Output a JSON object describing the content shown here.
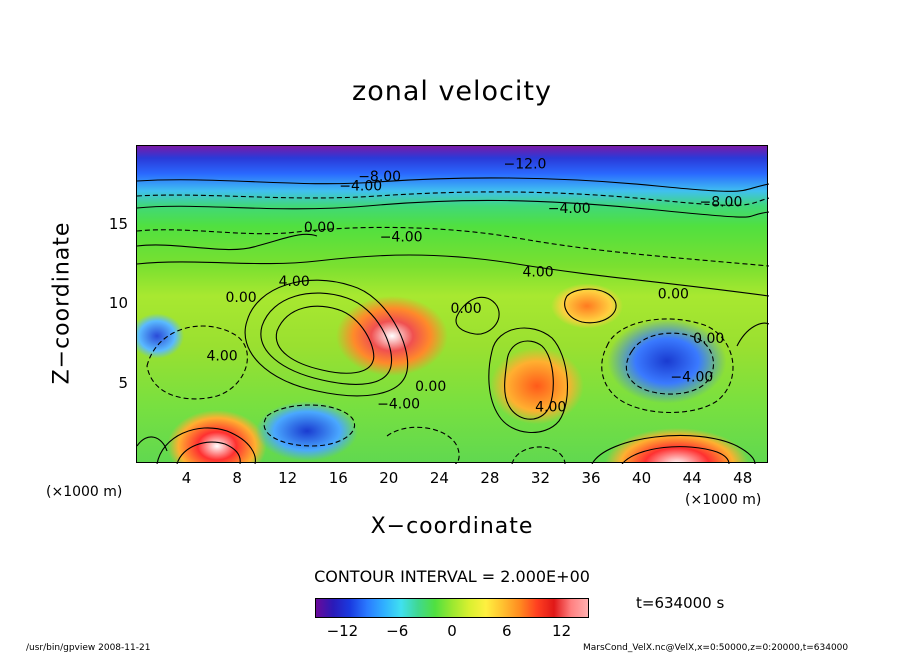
{
  "chart_data": {
    "type": "heatmap",
    "title": "zonal velocity",
    "xlabel": "X−coordinate",
    "ylabel": "Z−coordinate",
    "x_unit_left": "(×1000 m)",
    "x_unit_right": "(×1000 m)",
    "xlim": [
      0,
      50
    ],
    "ylim": [
      0,
      20
    ],
    "x_ticks": [
      "4",
      "8",
      "12",
      "16",
      "20",
      "24",
      "28",
      "32",
      "36",
      "40",
      "44",
      "48"
    ],
    "x_tick_values": [
      4,
      8,
      12,
      16,
      20,
      24,
      28,
      32,
      36,
      40,
      44,
      48
    ],
    "y_ticks": [
      "5",
      "10",
      "15"
    ],
    "y_tick_values": [
      5,
      10,
      15
    ],
    "contour_interval": "CONTOUR INTERVAL = 2.000E+00",
    "contour_labels": [
      {
        "text": "−12.0",
        "x": 29,
        "y": 18.6
      },
      {
        "text": "−8.00",
        "x": 17.5,
        "y": 17.8
      },
      {
        "text": "−4.00",
        "x": 16.0,
        "y": 17.2
      },
      {
        "text": "−8.00",
        "x": 44.5,
        "y": 16.2
      },
      {
        "text": "−4.00",
        "x": 32.5,
        "y": 15.8
      },
      {
        "text": "0.00",
        "x": 13.2,
        "y": 14.6
      },
      {
        "text": "−4.00",
        "x": 19.2,
        "y": 14.0
      },
      {
        "text": "4.00",
        "x": 30.5,
        "y": 11.8
      },
      {
        "text": "4.00",
        "x": 11.2,
        "y": 11.2
      },
      {
        "text": "0.00",
        "x": 7.0,
        "y": 10.2
      },
      {
        "text": "0.00",
        "x": 41.2,
        "y": 10.4
      },
      {
        "text": "0.00",
        "x": 24.8,
        "y": 9.5
      },
      {
        "text": "0.00",
        "x": 44.0,
        "y": 7.6
      },
      {
        "text": "4.00",
        "x": 5.5,
        "y": 6.5
      },
      {
        "text": "0.00",
        "x": 22.0,
        "y": 4.6
      },
      {
        "text": "−4.00",
        "x": 19.0,
        "y": 3.5
      },
      {
        "text": "4.00",
        "x": 31.5,
        "y": 3.3
      },
      {
        "text": "−4.00",
        "x": 42.2,
        "y": 5.2
      }
    ],
    "colorbar": {
      "min": -15,
      "max": 15,
      "ticks": [
        "−12",
        "−6",
        "0",
        "6",
        "12"
      ],
      "tick_values": [
        -12,
        -6,
        0,
        6,
        12
      ],
      "colors": [
        "#6a0a9a",
        "#1a3ae0",
        "#40e0f0",
        "#50e040",
        "#fff040",
        "#ff4020",
        "#ff8080"
      ]
    },
    "time_label": "t=634000 s",
    "footer_left": "/usr/bin/gpview  2008-11-21",
    "footer_right": "MarsCond_VelX.nc@VelX,x=0:50000,z=0:20000,t=634000"
  }
}
